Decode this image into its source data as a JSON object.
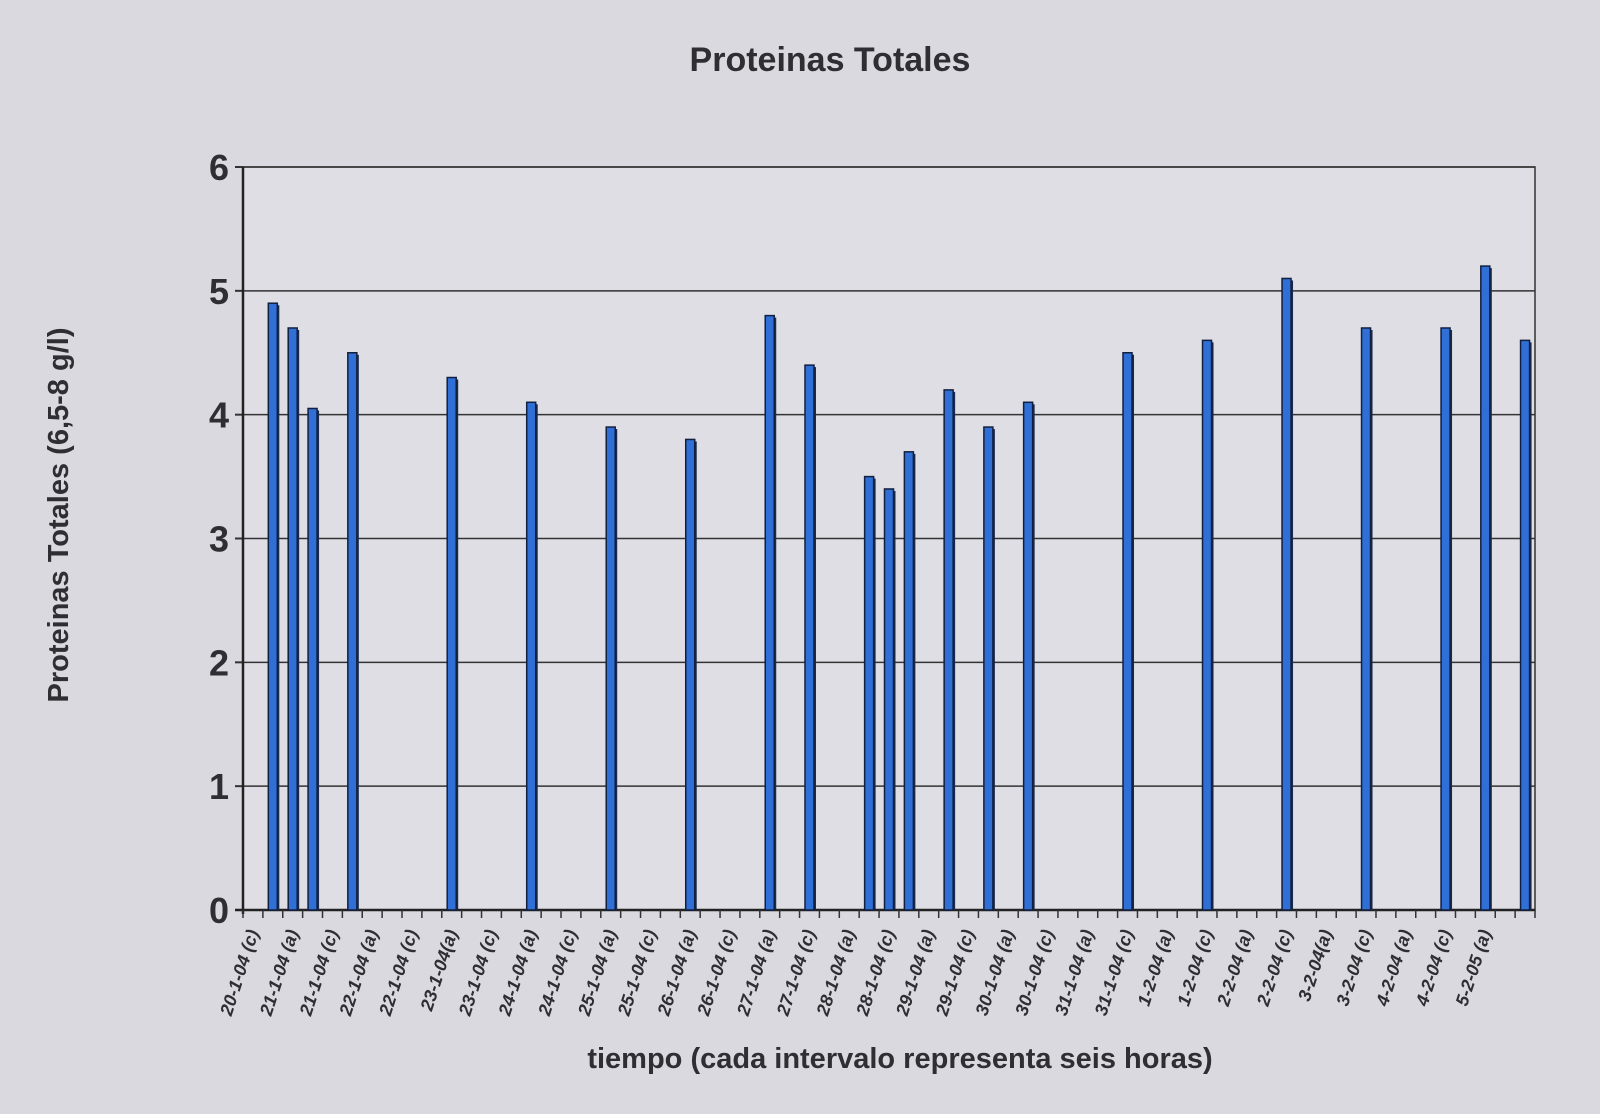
{
  "chart_data": {
    "type": "bar",
    "title": "Proteinas Totales",
    "xlabel": "tiempo (cada intervalo representa seis horas)",
    "ylabel": "Proteinas Totales (6,5-8 g/l)",
    "ylim": [
      0,
      6
    ],
    "yticks": [
      0,
      1,
      2,
      3,
      4,
      5,
      6
    ],
    "grid": true,
    "bar_color": "#2f6fd6",
    "tick_labels": [
      "20-1-04 (c)",
      "21-1-04 (a)",
      "21-1-04 (c)",
      "22-1-04 (a)",
      "22-1-04 (c)",
      "23-1-04(a)",
      "23-1-04 (c)",
      "24-1-04 (a)",
      "24-1-04 (c)",
      "25-1-04 (a)",
      "25-1-04 (c)",
      "26-1-04 (a)",
      "26-1-04 (c)",
      "27-1-04 (a)",
      "27-1-04 (c)",
      "28-1-04 (a)",
      "28-1-04 (c)",
      "29-1-04 (a)",
      "29-1-04 (c)",
      "30-1-04 (a)",
      "30-1-04 (c)",
      "31-1-04 (a)",
      "31-1-04 (c)",
      "1-2-04 (a)",
      "1-2-04 (c)",
      "2-2-04 (a)",
      "2-2-04 (c)",
      "3-2-04(a)",
      "3-2-04 (c)",
      "4-2-04 (a)",
      "4-2-04 (c)",
      "5-2-05 (a)"
    ],
    "values": [
      null,
      4.9,
      4.7,
      4.05,
      null,
      4.5,
      null,
      null,
      null,
      null,
      4.3,
      null,
      null,
      null,
      4.1,
      null,
      null,
      null,
      3.9,
      null,
      null,
      null,
      3.8,
      null,
      null,
      null,
      4.8,
      null,
      4.4,
      null,
      null,
      3.5,
      3.4,
      3.7,
      null,
      4.2,
      null,
      3.9,
      null,
      4.1,
      null,
      null,
      null,
      null,
      4.5,
      null,
      null,
      null,
      4.6,
      null,
      null,
      null,
      5.1,
      null,
      null,
      null,
      4.7,
      null,
      null,
      null,
      4.7,
      null,
      5.2,
      null,
      4.6
    ]
  }
}
